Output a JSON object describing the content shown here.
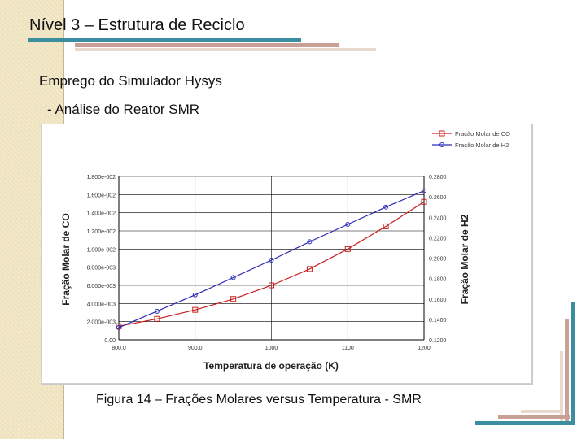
{
  "slide": {
    "title": "Nível 3 – Estrutura de Reciclo",
    "subtitle": "Emprego do Simulador Hysys",
    "subsubtitle": "- Análise do Reator SMR",
    "caption": "Figura 14 – Frações Molares versus Temperatura - SMR"
  },
  "colors": {
    "sidebar": "#efe3bf",
    "accent_teal": "#3b8da0",
    "accent_rose": "#c9a095",
    "series_co": "#c81e1e",
    "series_h2": "#2a2ab8"
  },
  "chart_data": {
    "type": "line",
    "xlabel": "Temperatura de operação (K)",
    "ylabel": "Fração Molar de CO",
    "y2label": "Fração Molar de H2",
    "xlim": [
      800,
      1200
    ],
    "ylim": [
      0,
      0.018
    ],
    "y2lim": [
      0.12,
      0.28
    ],
    "x_ticks": [
      "800.0",
      "900.0",
      "1000",
      "1100",
      "1200"
    ],
    "y_ticks": [
      "0.00",
      "2.000e-003",
      "4.000e-003",
      "6.000e-003",
      "8.000e-003",
      "1.000e-002",
      "1.200e-002",
      "1.400e-002",
      "1.600e-002",
      "1.800e-002"
    ],
    "y2_ticks": [
      "0.1200",
      "0.1400",
      "0.1600",
      "0.1800",
      "0.2000",
      "0.2200",
      "0.2400",
      "0.2600",
      "0.2800"
    ],
    "grid": true,
    "legend_position": "top-right",
    "series": [
      {
        "name": "Fração Molar de CO",
        "axis": "left",
        "x": [
          800,
          850,
          900,
          950,
          1000,
          1050,
          1100,
          1150,
          1200
        ],
        "values": [
          0.0015,
          0.0023,
          0.0033,
          0.0045,
          0.006,
          0.0078,
          0.01,
          0.0125,
          0.0152
        ]
      },
      {
        "name": "Fração Molar de H2",
        "axis": "right",
        "x": [
          800,
          850,
          900,
          950,
          1000,
          1050,
          1100,
          1150,
          1200
        ],
        "values": [
          0.132,
          0.148,
          0.164,
          0.181,
          0.198,
          0.216,
          0.233,
          0.25,
          0.266
        ]
      }
    ]
  }
}
